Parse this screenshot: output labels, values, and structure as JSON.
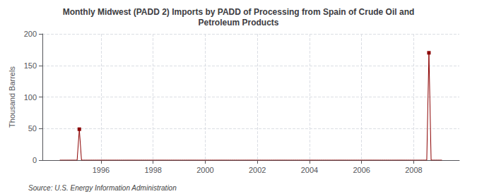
{
  "chart_data": {
    "type": "line",
    "title": "Monthly Midwest (PADD 2) Imports by PADD of Processing from Spain of Crude Oil and\nPetroleum Products",
    "ylabel": "Thousand Barrels",
    "annotations": [
      "Source: U.S. Energy Information Administration"
    ],
    "xlim": [
      1993.75,
      2009.75
    ],
    "ylim": [
      0,
      200
    ],
    "xticks": [
      1996,
      1998,
      2000,
      2002,
      2004,
      2006,
      2008
    ],
    "yticks": [
      0,
      50,
      100,
      150,
      200
    ],
    "grid": true,
    "color": "#8b0000",
    "marker": "square",
    "x": [
      1994.417,
      1994.5,
      1994.583,
      1994.667,
      1994.75,
      1994.833,
      1994.917,
      1995.0,
      1995.083,
      1995.167,
      1995.25,
      1995.333,
      1995.417,
      1995.5,
      1995.583,
      1995.667,
      1995.75,
      1995.833,
      1995.917,
      1996.0,
      1996.083,
      1996.167,
      1996.25,
      1996.333,
      1996.417,
      1996.5,
      1996.583,
      1996.667,
      1996.75,
      1996.833,
      1996.917,
      1997.0,
      1997.083,
      1997.167,
      1997.25,
      1997.333,
      1997.417,
      1997.5,
      1997.583,
      1997.667,
      1997.75,
      1997.833,
      1997.917,
      1998.0,
      1998.083,
      1998.167,
      1998.25,
      1998.333,
      1998.417,
      1998.5,
      1998.583,
      1998.667,
      1998.75,
      1998.833,
      1998.917,
      1999.0,
      1999.083,
      1999.167,
      1999.25,
      1999.333,
      1999.417,
      1999.5,
      1999.583,
      1999.667,
      1999.75,
      1999.833,
      1999.917,
      2000.0,
      2000.083,
      2000.167,
      2000.25,
      2000.333,
      2000.417,
      2000.5,
      2000.583,
      2000.667,
      2000.75,
      2000.833,
      2000.917,
      2001.0,
      2001.083,
      2001.167,
      2001.25,
      2001.333,
      2001.417,
      2001.5,
      2001.583,
      2001.667,
      2001.75,
      2001.833,
      2001.917,
      2002.0,
      2002.083,
      2002.167,
      2002.25,
      2002.333,
      2002.417,
      2002.5,
      2002.583,
      2002.667,
      2002.75,
      2002.833,
      2002.917,
      2003.0,
      2003.083,
      2003.167,
      2003.25,
      2003.333,
      2003.417,
      2003.5,
      2003.583,
      2003.667,
      2003.75,
      2003.833,
      2003.917,
      2004.0,
      2004.083,
      2004.167,
      2004.25,
      2004.333,
      2004.417,
      2004.5,
      2004.583,
      2004.667,
      2004.75,
      2004.833,
      2004.917,
      2005.0,
      2005.083,
      2005.167,
      2005.25,
      2005.333,
      2005.417,
      2005.5,
      2005.583,
      2005.667,
      2005.75,
      2005.833,
      2005.917,
      2006.0,
      2006.083,
      2006.167,
      2006.25,
      2006.333,
      2006.417,
      2006.5,
      2006.583,
      2006.667,
      2006.75,
      2006.833,
      2006.917,
      2007.0,
      2007.083,
      2007.167,
      2007.25,
      2007.333,
      2007.417,
      2007.5,
      2007.583,
      2007.667,
      2007.75,
      2007.833,
      2007.917,
      2008.0,
      2008.083,
      2008.167,
      2008.25,
      2008.333,
      2008.417,
      2008.5,
      2008.583,
      2008.667,
      2008.75,
      2008.833,
      2008.917,
      2009.0,
      2009.083
    ],
    "values": [
      0,
      0,
      0,
      0,
      0,
      0,
      0,
      0,
      0,
      49,
      0,
      0,
      0,
      0,
      0,
      0,
      0,
      0,
      0,
      0,
      0,
      0,
      0,
      0,
      0,
      0,
      0,
      0,
      0,
      0,
      0,
      0,
      0,
      0,
      0,
      0,
      0,
      0,
      0,
      0,
      0,
      0,
      0,
      0,
      0,
      0,
      0,
      0,
      0,
      0,
      0,
      0,
      0,
      0,
      0,
      0,
      0,
      0,
      0,
      0,
      0,
      0,
      0,
      0,
      0,
      0,
      0,
      0,
      0,
      0,
      0,
      0,
      0,
      0,
      0,
      0,
      0,
      0,
      0,
      0,
      0,
      0,
      0,
      0,
      0,
      0,
      0,
      0,
      0,
      0,
      0,
      0,
      0,
      0,
      0,
      0,
      0,
      0,
      0,
      0,
      0,
      0,
      0,
      0,
      0,
      0,
      0,
      0,
      0,
      0,
      0,
      0,
      0,
      0,
      0,
      0,
      0,
      0,
      0,
      0,
      0,
      0,
      0,
      0,
      0,
      0,
      0,
      0,
      0,
      0,
      0,
      0,
      0,
      0,
      0,
      0,
      0,
      0,
      0,
      0,
      0,
      0,
      0,
      0,
      0,
      0,
      0,
      0,
      0,
      0,
      0,
      0,
      0,
      0,
      0,
      0,
      0,
      0,
      0,
      0,
      0,
      0,
      0,
      0,
      0,
      0,
      0,
      0,
      0,
      0,
      170,
      0,
      0,
      0,
      0,
      0,
      0
    ]
  }
}
